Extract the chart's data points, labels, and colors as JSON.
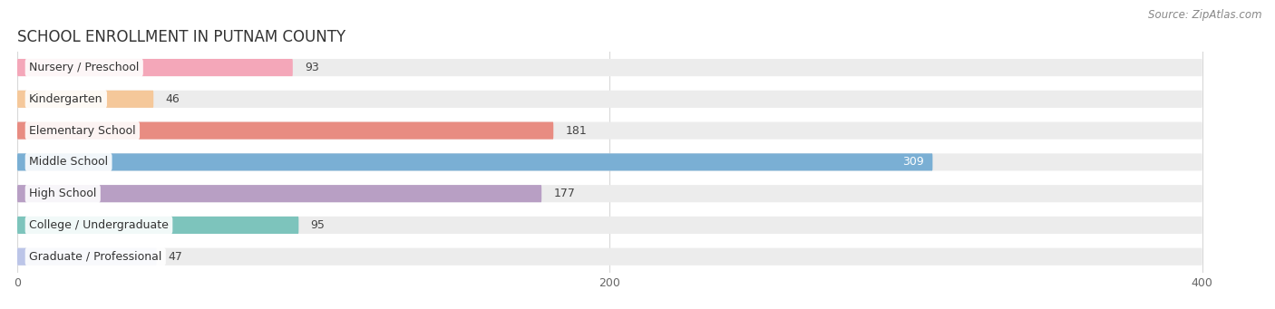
{
  "title": "SCHOOL ENROLLMENT IN PUTNAM COUNTY",
  "source": "Source: ZipAtlas.com",
  "categories": [
    "Nursery / Preschool",
    "Kindergarten",
    "Elementary School",
    "Middle School",
    "High School",
    "College / Undergraduate",
    "Graduate / Professional"
  ],
  "values": [
    93,
    46,
    181,
    309,
    177,
    95,
    47
  ],
  "bar_colors": [
    "#f4a7b9",
    "#f5c89a",
    "#e88c82",
    "#7aafd4",
    "#b89fc4",
    "#7dc4bc",
    "#bcc5e8"
  ],
  "bar_bg_color": "#ececec",
  "data_max": 420,
  "xlim": [
    0,
    420
  ],
  "xticks": [
    0,
    200,
    400
  ],
  "title_fontsize": 12,
  "label_fontsize": 9,
  "value_fontsize": 9,
  "bar_height": 0.55,
  "bg_color": "#ffffff",
  "grid_color": "#d8d8d8",
  "text_color": "#444444",
  "title_color": "#333333"
}
